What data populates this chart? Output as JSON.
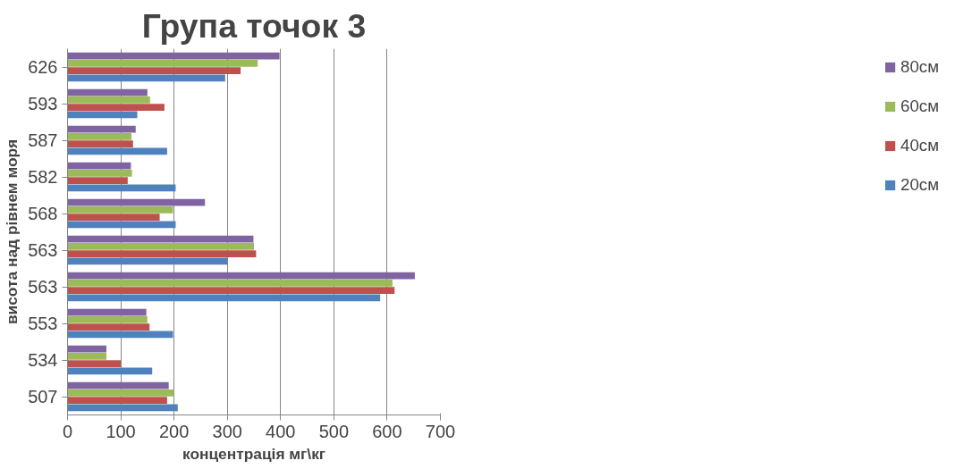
{
  "chart_data": {
    "type": "bar",
    "orientation": "horizontal",
    "title": "Група точок 3",
    "xlabel": "концентрація мг\\кг",
    "ylabel": "висота над рівнем моря",
    "categories": [
      "626",
      "593",
      "587",
      "582",
      "568",
      "563",
      "563",
      "553",
      "534",
      "507"
    ],
    "series": [
      {
        "name": "20см",
        "color": "#4f81bd",
        "values": [
          296,
          131,
          187,
          203,
          203,
          300,
          587,
          198,
          159,
          207
        ]
      },
      {
        "name": "40см",
        "color": "#c0504d",
        "values": [
          325,
          182,
          123,
          113,
          173,
          354,
          614,
          154,
          100,
          187
        ]
      },
      {
        "name": "60см",
        "color": "#9bbb59",
        "values": [
          357,
          155,
          120,
          121,
          198,
          350,
          610,
          150,
          73,
          200
        ]
      },
      {
        "name": "80см",
        "color": "#8064a2",
        "values": [
          398,
          150,
          128,
          119,
          258,
          349,
          652,
          148,
          73,
          190
        ]
      }
    ],
    "xlim": [
      0,
      700
    ],
    "xticks": [
      0,
      100,
      200,
      300,
      400,
      500,
      600,
      700
    ],
    "grid": "x",
    "legend": "right"
  }
}
